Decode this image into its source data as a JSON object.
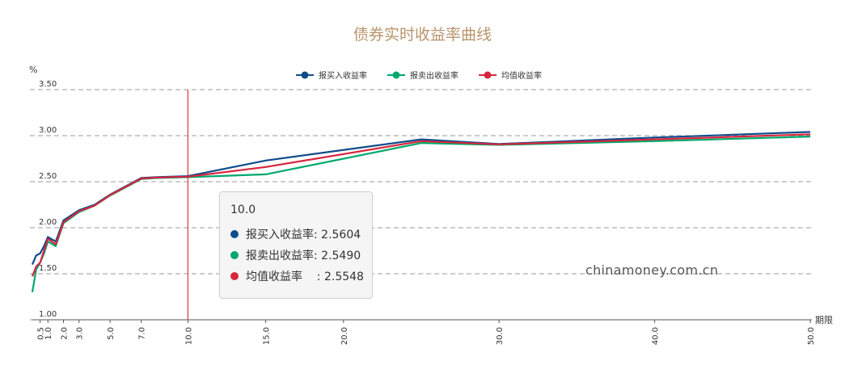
{
  "chart_data": {
    "type": "line",
    "title": "债券实时收益率曲线",
    "ylabel": "%",
    "xlabel": "期限",
    "ylim": [
      1.0,
      3.5
    ],
    "xlim": [
      0,
      50
    ],
    "yticks": [
      "3.50",
      "3.00",
      "2.50",
      "2.00",
      "1.50",
      "1.00"
    ],
    "ytick_values": [
      3.5,
      3.0,
      2.5,
      2.0,
      1.5,
      1.0
    ],
    "xticks": [
      "0.5",
      "1.0",
      "2.0",
      "3.0",
      "5.0",
      "7.0",
      "10.0",
      "15.0",
      "20.0",
      "30.0",
      "40.0",
      "50.0"
    ],
    "xtick_values": [
      0.5,
      1.0,
      2.0,
      3.0,
      5.0,
      7.0,
      10.0,
      15.0,
      20.0,
      30.0,
      40.0,
      50.0
    ],
    "legend_position": "top-center",
    "grid": "horizontal-dashed",
    "x": [
      0.0,
      0.25,
      0.5,
      0.75,
      1.0,
      1.5,
      2.0,
      3.0,
      4.0,
      5.0,
      7.0,
      8.0,
      9.0,
      10.0,
      15.0,
      25.0,
      30.0,
      40.0,
      50.0
    ],
    "series": [
      {
        "name": "报买入收益率",
        "color": "#0f4c8b",
        "values": [
          1.6,
          1.7,
          1.72,
          1.8,
          1.9,
          1.85,
          2.08,
          2.19,
          2.25,
          2.36,
          2.54,
          2.55,
          2.555,
          2.5604,
          2.73,
          2.96,
          2.91,
          2.98,
          3.04
        ]
      },
      {
        "name": "报卖出收益率",
        "color": "#00a86b",
        "values": [
          1.3,
          1.55,
          1.62,
          1.72,
          1.85,
          1.8,
          2.05,
          2.17,
          2.24,
          2.35,
          2.53,
          2.54,
          2.545,
          2.549,
          2.58,
          2.92,
          2.9,
          2.94,
          2.99
        ]
      },
      {
        "name": "均值收益率",
        "color": "#d7263d",
        "values": [
          1.47,
          1.58,
          1.62,
          1.75,
          1.88,
          1.82,
          2.06,
          2.18,
          2.24,
          2.355,
          2.535,
          2.545,
          2.55,
          2.5548,
          2.66,
          2.94,
          2.905,
          2.96,
          3.015
        ]
      }
    ],
    "crosshair_x": 10.0
  },
  "tooltip": {
    "x_label": "10.0",
    "rows": [
      {
        "label": "报买入收益率: 2.5604",
        "color": "#0f4c8b"
      },
      {
        "label": "报卖出收益率: 2.5490",
        "color": "#00a86b"
      },
      {
        "label": "均值收益率    : 2.5548",
        "color": "#d7263d"
      }
    ]
  },
  "watermark": "chinamoney.com.cn"
}
